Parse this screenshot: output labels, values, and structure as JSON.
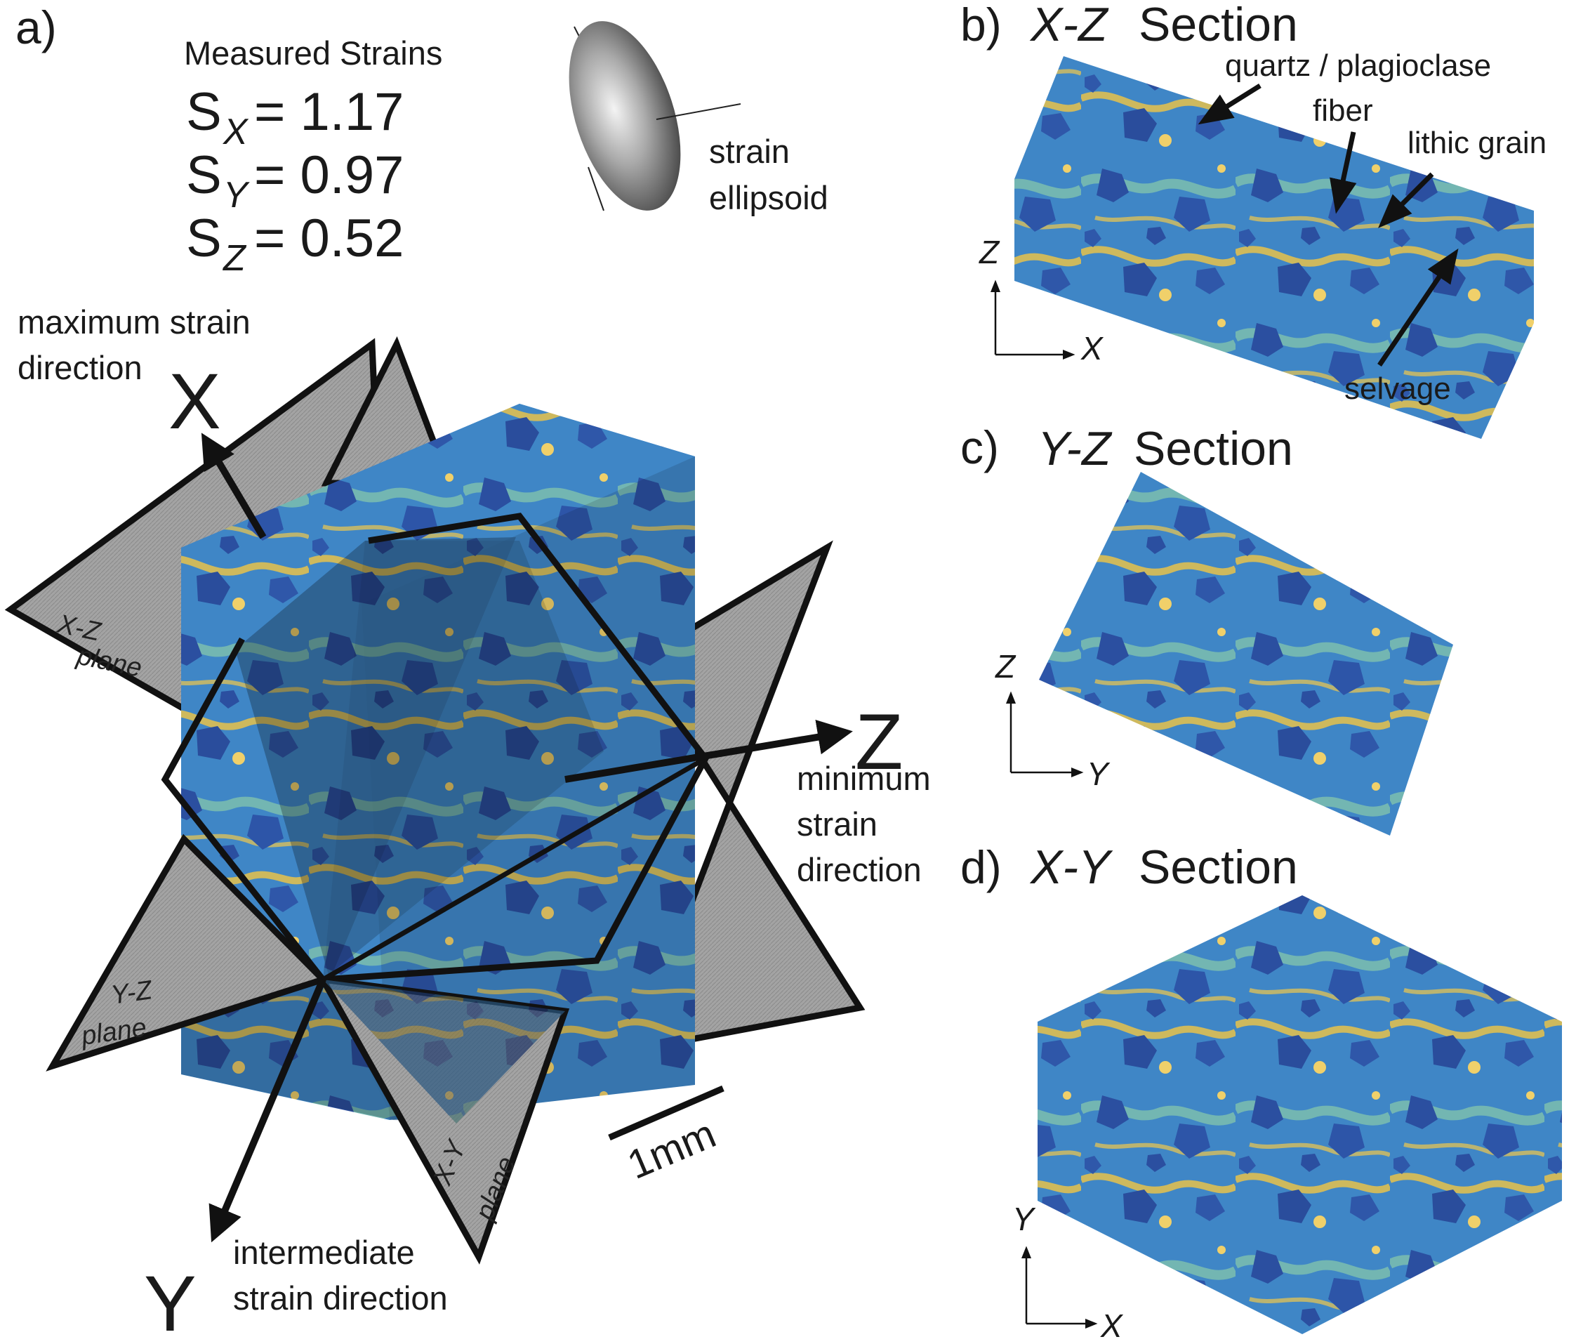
{
  "colors": {
    "matrix": "#3a7fc4",
    "grain": "#2c52a3",
    "fiber": "#e8c24a",
    "light": "#7fbfb0",
    "plane": "#9a9a9a",
    "outline": "#111111"
  },
  "panel_a": {
    "letter": "a)",
    "strains_title": "Measured Strains",
    "strains": [
      {
        "symbol": "S",
        "sub": "X",
        "eq": "= 1.17"
      },
      {
        "symbol": "S",
        "sub": "Y",
        "eq": "= 0.97"
      },
      {
        "symbol": "S",
        "sub": "Z",
        "eq": "= 0.52"
      }
    ],
    "ellipsoid_label_1": "strain",
    "ellipsoid_label_2": "ellipsoid",
    "max_dir_1": "maximum strain",
    "max_dir_2": "direction",
    "axis_x": "X",
    "axis_y": "Y",
    "axis_z": "Z",
    "min_dir_1": "minimum",
    "min_dir_2": "strain",
    "min_dir_3": "direction",
    "int_dir_1": "intermediate",
    "int_dir_2": "strain direction",
    "xz_plane_1": "X-Z",
    "xz_plane_2": "plane",
    "yz_plane_1": "Y-Z",
    "yz_plane_2": "plane",
    "xy_plane_1": "X-Y",
    "xy_plane_2": "plane",
    "scale_bar": "1mm"
  },
  "panel_b": {
    "letter": "b)",
    "title_axes": "X-Z",
    "title_word": "Section",
    "annotations": [
      "quartz / plagioclase",
      "fiber",
      "lithic grain",
      "selvage"
    ],
    "axis_v": "Z",
    "axis_h": "X"
  },
  "panel_c": {
    "letter": "c)",
    "title_axes": "Y-Z",
    "title_word": "Section",
    "axis_v": "Z",
    "axis_h": "Y"
  },
  "panel_d": {
    "letter": "d)",
    "title_axes": "X-Y",
    "title_word": "Section",
    "axis_v": "Y",
    "axis_h": "X"
  }
}
